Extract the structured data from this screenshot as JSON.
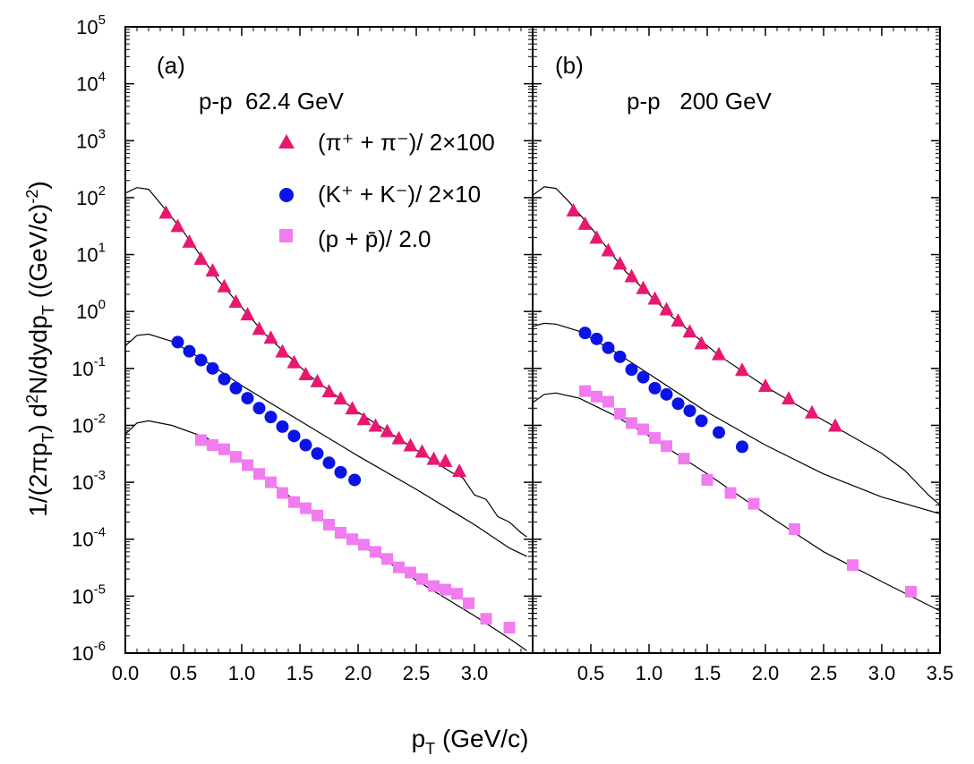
{
  "chart_data": {
    "type": "scatter",
    "y_scale": "log",
    "ylim": [
      1e-06,
      100000.0
    ],
    "y_ticks": [
      {
        "base": "10",
        "exp": "-6",
        "value": 1e-06
      },
      {
        "base": "10",
        "exp": "-5",
        "value": 1e-05
      },
      {
        "base": "10",
        "exp": "-4",
        "value": 0.0001
      },
      {
        "base": "10",
        "exp": "-3",
        "value": 0.001
      },
      {
        "base": "10",
        "exp": "-2",
        "value": 0.01
      },
      {
        "base": "10",
        "exp": "-1",
        "value": 0.1
      },
      {
        "base": "10",
        "exp": "0",
        "value": 1
      },
      {
        "base": "10",
        "exp": "1",
        "value": 10
      },
      {
        "base": "10",
        "exp": "2",
        "value": 100
      },
      {
        "base": "10",
        "exp": "3",
        "value": 1000
      },
      {
        "base": "10",
        "exp": "4",
        "value": 10000
      },
      {
        "base": "10",
        "exp": "5",
        "value": 100000
      }
    ],
    "ylabel": {
      "a": "1/(2πp",
      "a_sub": "T",
      "b": ") d",
      "b_sup": "2",
      "c": "N/dydp",
      "c_sub": "T",
      "d": " ((GeV/c)",
      "d_sup": "-2",
      "e": ")"
    },
    "xlabel": {
      "main": "p",
      "sub": "T",
      "rest": " (GeV/c)"
    },
    "legend": [
      {
        "series": "pi",
        "marker": "triangle",
        "color": "#e8176f",
        "text": "(π⁺ + π⁻)/ 2×100"
      },
      {
        "series": "K",
        "marker": "circle",
        "color": "#0a14e6",
        "text": "(K⁺ + K⁻)/ 2×10"
      },
      {
        "series": "p",
        "marker": "square",
        "color": "#f07cf0",
        "text": "(p + p̄)/ 2.0"
      }
    ],
    "panels": [
      {
        "label": "(a)",
        "title": "p-p  62.4 GeV",
        "xlim": [
          0,
          3.5
        ],
        "x_ticks": [
          "0.0",
          "0.5",
          "1.0",
          "1.5",
          "2.0",
          "2.5",
          "3.0"
        ],
        "x_tick_values": [
          0,
          0.5,
          1.0,
          1.5,
          2.0,
          2.5,
          3.0
        ],
        "series": [
          {
            "name": "pi",
            "color": "#e8176f",
            "marker": "triangle",
            "x": [
              0.35,
              0.45,
              0.55,
              0.65,
              0.75,
              0.85,
              0.95,
              1.05,
              1.15,
              1.25,
              1.35,
              1.45,
              1.55,
              1.65,
              1.75,
              1.85,
              1.95,
              2.05,
              2.15,
              2.25,
              2.35,
              2.45,
              2.55,
              2.65,
              2.75,
              2.87
            ],
            "y": [
              55,
              32,
              17,
              8.5,
              5.3,
              2.8,
              1.5,
              0.9,
              0.5,
              0.35,
              0.2,
              0.13,
              0.08,
              0.06,
              0.04,
              0.03,
              0.02,
              0.013,
              0.01,
              0.008,
              0.006,
              0.0045,
              0.0035,
              0.0026,
              0.0024,
              0.0016
            ]
          },
          {
            "name": "K",
            "color": "#0a14e6",
            "marker": "circle",
            "x": [
              0.45,
              0.55,
              0.65,
              0.75,
              0.85,
              0.95,
              1.05,
              1.15,
              1.25,
              1.35,
              1.45,
              1.55,
              1.65,
              1.75,
              1.85,
              1.97
            ],
            "y": [
              0.29,
              0.2,
              0.14,
              0.1,
              0.065,
              0.045,
              0.03,
              0.02,
              0.014,
              0.0095,
              0.0065,
              0.0045,
              0.0032,
              0.0022,
              0.0015,
              0.0011
            ]
          },
          {
            "name": "p",
            "color": "#f07cf0",
            "marker": "square",
            "x": [
              0.65,
              0.75,
              0.85,
              0.95,
              1.05,
              1.15,
              1.25,
              1.35,
              1.45,
              1.55,
              1.65,
              1.75,
              1.85,
              1.95,
              2.05,
              2.15,
              2.25,
              2.35,
              2.45,
              2.55,
              2.65,
              2.75,
              2.85,
              2.95,
              3.1,
              3.3
            ],
            "y": [
              0.0055,
              0.0045,
              0.0038,
              0.0028,
              0.002,
              0.0014,
              0.001,
              0.00065,
              0.00045,
              0.00035,
              0.00026,
              0.00018,
              0.00013,
              0.0001,
              8e-05,
              6e-05,
              4.5e-05,
              3.2e-05,
              2.6e-05,
              2e-05,
              1.5e-05,
              1.3e-05,
              1.1e-05,
              7.5e-06,
              4e-06,
              2.8e-06
            ]
          }
        ],
        "curves": [
          {
            "name": "pi-fit",
            "x": [
              0.0,
              0.1,
              0.2,
              0.3,
              0.5,
              0.8,
              1.2,
              1.6,
              2.0,
              2.4,
              2.8,
              2.9,
              3.0,
              3.1,
              3.2,
              3.3,
              3.4,
              3.45
            ],
            "y": [
              120,
              150,
              140,
              80,
              25,
              3.5,
              0.4,
              0.07,
              0.017,
              0.005,
              0.0015,
              0.0012,
              0.0006,
              0.0005,
              0.00025,
              0.0002,
              0.00013,
              0.00011
            ]
          },
          {
            "name": "K-fit",
            "x": [
              0.0,
              0.1,
              0.2,
              0.4,
              0.7,
              1.0,
              1.5,
              2.0,
              2.5,
              3.0,
              3.3,
              3.45
            ],
            "y": [
              0.25,
              0.38,
              0.4,
              0.3,
              0.13,
              0.05,
              0.012,
              0.0029,
              0.00075,
              0.00018,
              7e-05,
              5e-05
            ]
          },
          {
            "name": "p-fit",
            "x": [
              0.0,
              0.1,
              0.2,
              0.4,
              0.7,
              1.0,
              1.5,
              2.0,
              2.5,
              3.0,
              3.3,
              3.45
            ],
            "y": [
              0.007,
              0.011,
              0.012,
              0.01,
              0.006,
              0.0023,
              0.00042,
              8.5e-05,
              1.9e-05,
              4.5e-06,
              1.8e-06,
              1.1e-06
            ]
          }
        ]
      },
      {
        "label": "(b)",
        "title": "p-p   200 GeV",
        "xlim": [
          0,
          3.5
        ],
        "x_ticks": [
          "0.5",
          "1.0",
          "1.5",
          "2.0",
          "2.5",
          "3.0",
          "3.5"
        ],
        "x_tick_values": [
          0.5,
          1.0,
          1.5,
          2.0,
          2.5,
          3.0,
          3.5
        ],
        "series": [
          {
            "name": "pi",
            "color": "#e8176f",
            "marker": "triangle",
            "x": [
              0.35,
              0.45,
              0.55,
              0.65,
              0.75,
              0.85,
              0.95,
              1.05,
              1.15,
              1.25,
              1.35,
              1.45,
              1.6,
              1.8,
              2.0,
              2.2,
              2.4,
              2.6
            ],
            "y": [
              60,
              35,
              20,
              12,
              7,
              4.2,
              2.6,
              1.7,
              1.1,
              0.7,
              0.45,
              0.28,
              0.18,
              0.095,
              0.05,
              0.03,
              0.017,
              0.01
            ]
          },
          {
            "name": "K",
            "color": "#0a14e6",
            "marker": "circle",
            "x": [
              0.45,
              0.55,
              0.65,
              0.75,
              0.85,
              0.95,
              1.05,
              1.15,
              1.25,
              1.35,
              1.45,
              1.6,
              1.8
            ],
            "y": [
              0.42,
              0.33,
              0.23,
              0.16,
              0.095,
              0.07,
              0.045,
              0.035,
              0.024,
              0.018,
              0.012,
              0.0075,
              0.0042
            ]
          },
          {
            "name": "p",
            "color": "#f07cf0",
            "marker": "square",
            "x": [
              0.45,
              0.55,
              0.65,
              0.75,
              0.85,
              0.95,
              1.05,
              1.15,
              1.3,
              1.5,
              1.7,
              1.9,
              2.25,
              2.75,
              3.25
            ],
            "y": [
              0.04,
              0.032,
              0.026,
              0.016,
              0.011,
              0.0085,
              0.006,
              0.0043,
              0.0026,
              0.0011,
              0.00065,
              0.00042,
              0.00015,
              3.5e-05,
              1.2e-05
            ]
          }
        ],
        "curves": [
          {
            "name": "pi-fit",
            "x": [
              0.0,
              0.1,
              0.2,
              0.3,
              0.5,
              0.8,
              1.2,
              1.6,
              2.0,
              2.4,
              2.8,
              3.0,
              3.2,
              3.4,
              3.5
            ],
            "y": [
              110,
              155,
              145,
              90,
              30,
              5,
              0.8,
              0.17,
              0.048,
              0.016,
              0.0055,
              0.0032,
              0.0016,
              0.0006,
              0.0004
            ]
          },
          {
            "name": "K-fit",
            "x": [
              0.0,
              0.1,
              0.2,
              0.4,
              0.7,
              1.0,
              1.5,
              2.0,
              2.5,
              3.0,
              3.5
            ],
            "y": [
              0.55,
              0.62,
              0.6,
              0.45,
              0.2,
              0.08,
              0.017,
              0.0045,
              0.0014,
              0.00055,
              0.00028
            ]
          },
          {
            "name": "p-fit",
            "x": [
              0.0,
              0.1,
              0.2,
              0.4,
              0.7,
              1.0,
              1.5,
              2.0,
              2.5,
              3.0,
              3.5
            ],
            "y": [
              0.025,
              0.035,
              0.037,
              0.03,
              0.015,
              0.0065,
              0.0014,
              0.00028,
              6e-05,
              1.8e-05,
              5.5e-06
            ]
          }
        ]
      }
    ]
  }
}
